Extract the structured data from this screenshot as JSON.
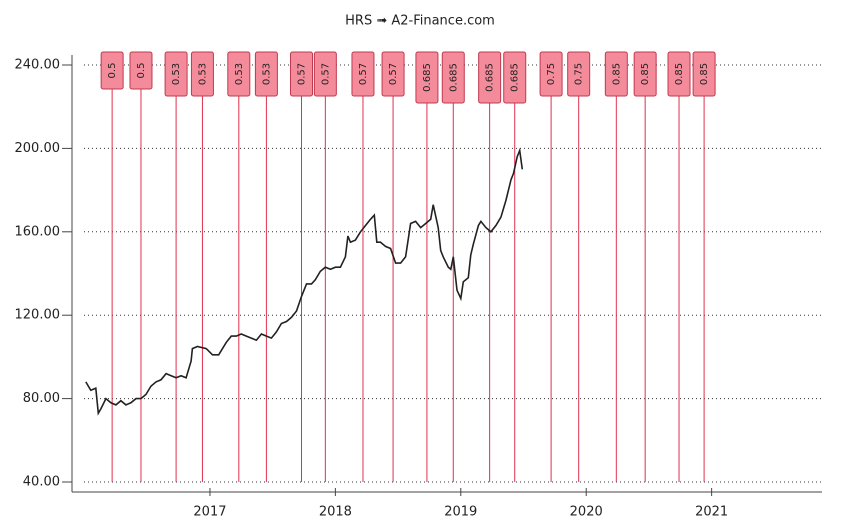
{
  "chart_data": {
    "type": "line",
    "title": "HRS ➟ A2-Finance.com",
    "x": [
      2016.01,
      2016.05,
      2016.09,
      2016.11,
      2016.13,
      2016.17,
      2016.21,
      2016.25,
      2016.29,
      2016.33,
      2016.37,
      2016.41,
      2016.45,
      2016.49,
      2016.53,
      2016.57,
      2016.61,
      2016.65,
      2016.69,
      2016.73,
      2016.77,
      2016.81,
      2016.85,
      2016.86,
      2016.9,
      2016.97,
      2017.02,
      2017.07,
      2017.13,
      2017.17,
      2017.21,
      2017.25,
      2017.29,
      2017.33,
      2017.37,
      2017.41,
      2017.45,
      2017.49,
      2017.53,
      2017.57,
      2017.61,
      2017.65,
      2017.69,
      2017.73,
      2017.77,
      2017.81,
      2017.84,
      2017.88,
      2017.92,
      2017.96,
      2018.0,
      2018.04,
      2018.08,
      2018.1,
      2018.12,
      2018.16,
      2018.2,
      2018.24,
      2018.28,
      2018.31,
      2018.33,
      2018.36,
      2018.4,
      2018.44,
      2018.48,
      2018.52,
      2018.56,
      2018.6,
      2018.64,
      2018.68,
      2018.72,
      2018.76,
      2018.78,
      2018.82,
      2018.84,
      2018.86,
      2018.9,
      2018.92,
      2018.94,
      2018.97,
      2019.0,
      2019.02,
      2019.06,
      2019.08,
      2019.1,
      2019.14,
      2019.16,
      2019.2,
      2019.24,
      2019.28,
      2019.32,
      2019.36,
      2019.4,
      2019.42,
      2019.45,
      2019.47,
      2019.49
    ],
    "series": [
      {
        "color": "#222222",
        "values": [
          88,
          84,
          85,
          73,
          75,
          80,
          78,
          77,
          79,
          77,
          78,
          80,
          80,
          82,
          86,
          88,
          89,
          92,
          91,
          90,
          91,
          90,
          98,
          104,
          105,
          104,
          101,
          101,
          107,
          110,
          110,
          111,
          110,
          109,
          108,
          111,
          110,
          109,
          112,
          116,
          117,
          119,
          122,
          129,
          135,
          135,
          137,
          141,
          143,
          142,
          143,
          143,
          148,
          158,
          155,
          156,
          160,
          163,
          166,
          168,
          155,
          155,
          153,
          152,
          145,
          145,
          148,
          164,
          165,
          162,
          164,
          166,
          173,
          162,
          151,
          148,
          143,
          142,
          148,
          132,
          128,
          136,
          138,
          149,
          154,
          163,
          165,
          162,
          160,
          163,
          167,
          175,
          185,
          188,
          196,
          199,
          190
        ]
      }
    ],
    "dividends": {
      "color": "#e0304f",
      "box_color": "#f48b9b",
      "x": [
        2016.22,
        2016.45,
        2016.73,
        2016.94,
        2017.23,
        2017.45,
        2017.73,
        2017.92,
        2018.22,
        2018.46,
        2018.73,
        2018.94,
        2019.23,
        2019.43,
        2019.72,
        2019.94,
        2020.24,
        2020.47,
        2020.74,
        2020.94
      ],
      "values": [
        0.5,
        0.5,
        0.53,
        0.53,
        0.53,
        0.53,
        0.57,
        0.57,
        0.57,
        0.57,
        0.685,
        0.685,
        0.685,
        0.685,
        0.75,
        0.75,
        0.85,
        0.85,
        0.85,
        0.85
      ]
    },
    "xlim": [
      2015.9,
      2021.88
    ],
    "xticks": [
      2017,
      2018,
      2019,
      2020,
      2021
    ],
    "ylim": [
      40,
      240
    ],
    "yticks": [
      {
        "value": 40,
        "label": "40.00"
      },
      {
        "value": 80,
        "label": "80.00"
      },
      {
        "value": 120,
        "label": "120.00"
      },
      {
        "value": 160,
        "label": "160.00"
      },
      {
        "value": 200,
        "label": "200.00"
      },
      {
        "value": 240,
        "label": "240.00"
      }
    ],
    "grid": true
  }
}
